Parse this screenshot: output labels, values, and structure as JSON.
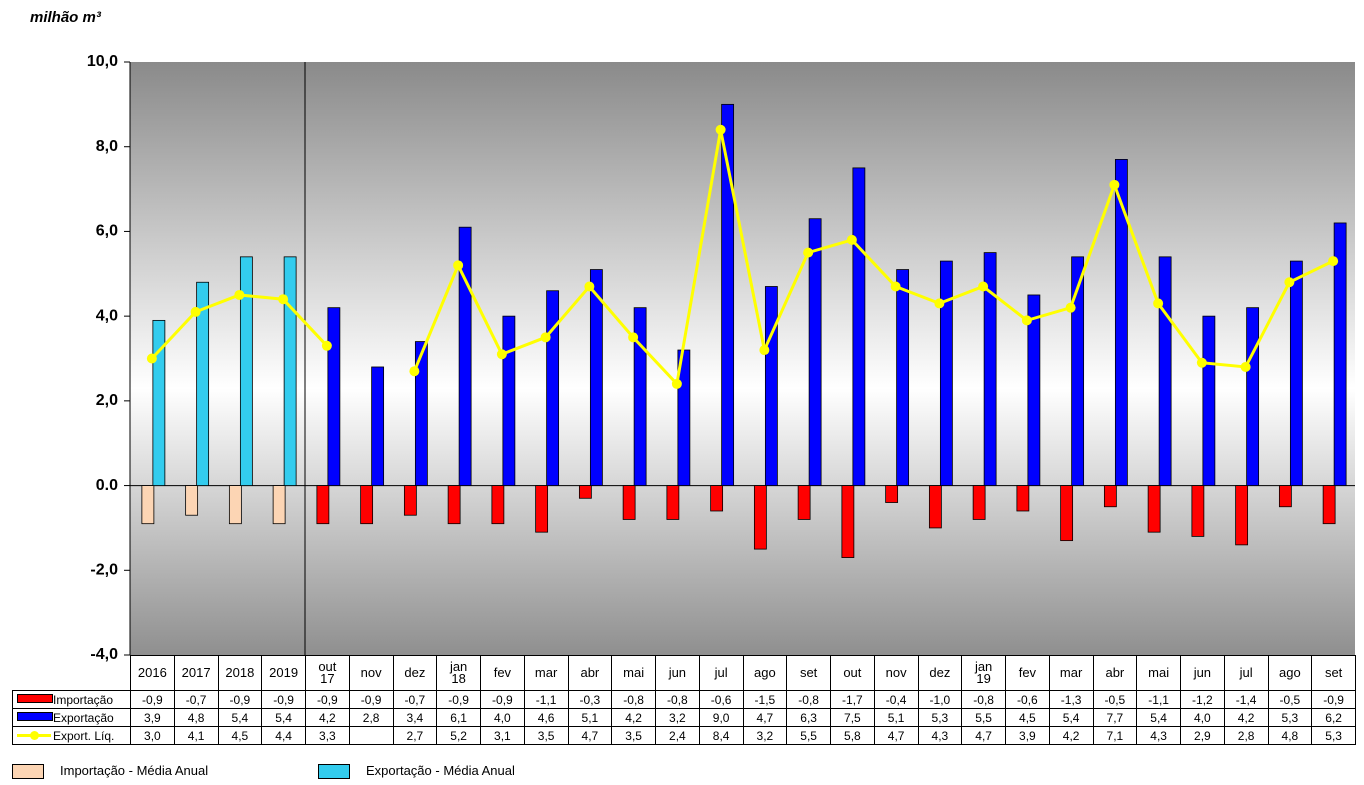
{
  "chart_data": {
    "type": "bar",
    "title": "milhão m³",
    "categories": [
      "2016",
      "2017",
      "2018",
      "2019",
      "out 17",
      "nov",
      "dez",
      "jan 18",
      "fev",
      "mar",
      "abr",
      "mai",
      "jun",
      "jul",
      "ago",
      "set",
      "out",
      "nov",
      "dez",
      "jan 19",
      "fev",
      "mar",
      "abr",
      "mai",
      "jun",
      "jul",
      "ago",
      "set"
    ],
    "series": [
      {
        "name": "Importação",
        "color": "#ff0000",
        "annual_name": "Importação - Média Anual",
        "annual_color": "#fcd5b4",
        "values": [
          -0.9,
          -0.7,
          -0.9,
          -0.9,
          -0.9,
          -0.9,
          -0.7,
          -0.9,
          -0.9,
          -1.1,
          -0.3,
          -0.8,
          -0.8,
          -0.6,
          -1.5,
          -0.8,
          -1.7,
          -0.4,
          -1.0,
          -0.8,
          -0.6,
          -1.3,
          -0.5,
          -1.1,
          -1.2,
          -1.4,
          -0.5,
          -0.9
        ],
        "value_labels": [
          "-0,9",
          "-0,7",
          "-0,9",
          "-0,9",
          "-0,9",
          "-0,9",
          "-0,7",
          "-0,9",
          "-0,9",
          "-1,1",
          "-0,3",
          "-0,8",
          "-0,8",
          "-0,6",
          "-1,5",
          "-0,8",
          "-1,7",
          "-0,4",
          "-1,0",
          "-0,8",
          "-0,6",
          "-1,3",
          "-0,5",
          "-1,1",
          "-1,2",
          "-1,4",
          "-0,5",
          "-0,9"
        ]
      },
      {
        "name": "Exportação",
        "color": "#0000ff",
        "annual_name": "Exportação - Média Anual",
        "annual_color": "#33ccee",
        "values": [
          3.9,
          4.8,
          5.4,
          5.4,
          4.2,
          2.8,
          3.4,
          6.1,
          4.0,
          4.6,
          5.1,
          4.2,
          3.2,
          9.0,
          4.7,
          6.3,
          7.5,
          5.1,
          5.3,
          5.5,
          4.5,
          5.4,
          7.7,
          5.4,
          4.0,
          4.2,
          5.3,
          6.2
        ],
        "value_labels": [
          "3,9",
          "4,8",
          "5,4",
          "5,4",
          "4,2",
          "2,8",
          "3,4",
          "6,1",
          "4,0",
          "4,6",
          "5,1",
          "4,2",
          "3,2",
          "9,0",
          "4,7",
          "6,3",
          "7,5",
          "5,1",
          "5,3",
          "5,5",
          "4,5",
          "5,4",
          "7,7",
          "5,4",
          "4,0",
          "4,2",
          "5,3",
          "6,2"
        ]
      },
      {
        "name": "Export. Líq.",
        "type": "line",
        "color": "#ffff00",
        "values": [
          3.0,
          4.1,
          4.5,
          4.4,
          3.3,
          null,
          2.7,
          5.2,
          3.1,
          3.5,
          4.7,
          3.5,
          2.4,
          8.4,
          3.2,
          5.5,
          5.8,
          4.7,
          4.3,
          4.7,
          3.9,
          4.2,
          7.1,
          4.3,
          2.9,
          2.8,
          4.8,
          5.3
        ],
        "value_labels": [
          "3,0",
          "4,1",
          "4,5",
          "4,4",
          "3,3",
          null,
          "2,7",
          "5,2",
          "3,1",
          "3,5",
          "4,7",
          "3,5",
          "2,4",
          "8,4",
          "3,2",
          "5,5",
          "5,8",
          "4,7",
          "4,3",
          "4,7",
          "3,9",
          "4,2",
          "7,1",
          "4,3",
          "2,9",
          "2,8",
          "4,8",
          "5,3"
        ]
      }
    ],
    "ylim": [
      -4,
      10
    ],
    "yticks": [
      {
        "value": -4,
        "label": "-4,0"
      },
      {
        "value": -2,
        "label": "-2,0"
      },
      {
        "value": 0,
        "label": "0.0"
      },
      {
        "value": 2,
        "label": "2,0"
      },
      {
        "value": 4,
        "label": "4,0"
      },
      {
        "value": 6,
        "label": "6,0"
      },
      {
        "value": 8,
        "label": "8,0"
      },
      {
        "value": 10,
        "label": "10,0"
      }
    ]
  }
}
